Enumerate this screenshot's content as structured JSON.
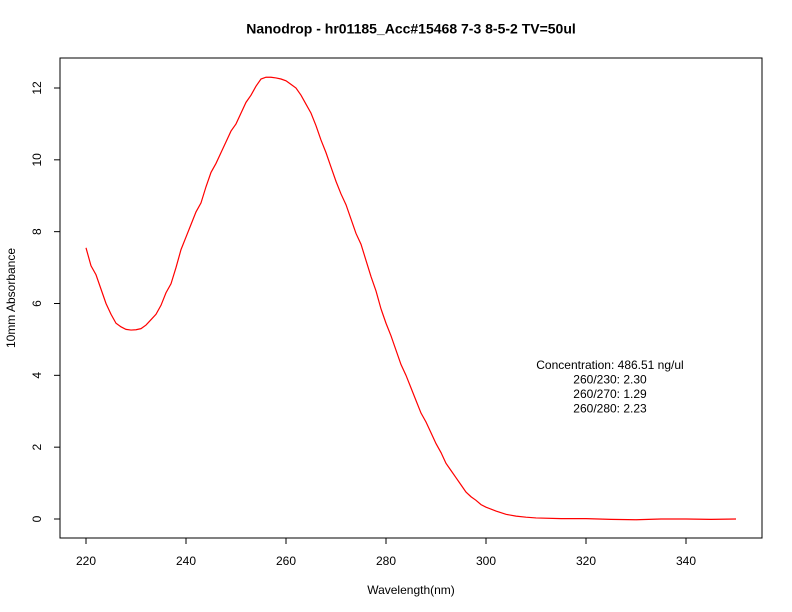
{
  "chart_data": {
    "type": "line",
    "title": "Nanodrop - hr01185_Acc#15468   7-3 8-5-2  TV=50ul",
    "x_label": "Wavelength(nm)",
    "y_label": "10mm Absorbance",
    "annotations": [
      "Concentration: 486.51 ng/ul",
      "260/230: 2.30",
      "260/270: 1.29",
      "260/280: 2.23"
    ],
    "x": [
      220,
      221,
      222,
      223,
      224,
      225,
      226,
      227,
      228,
      229,
      230,
      231,
      232,
      233,
      234,
      235,
      236,
      237,
      238,
      239,
      240,
      241,
      242,
      243,
      244,
      245,
      246,
      247,
      248,
      249,
      250,
      251,
      252,
      253,
      254,
      255,
      256,
      257,
      258,
      259,
      260,
      261,
      262,
      263,
      264,
      265,
      266,
      267,
      268,
      269,
      270,
      271,
      272,
      273,
      274,
      275,
      276,
      277,
      278,
      279,
      280,
      281,
      282,
      283,
      284,
      285,
      286,
      287,
      288,
      289,
      290,
      291,
      292,
      293,
      294,
      295,
      296,
      297,
      298,
      299,
      300,
      302,
      304,
      306,
      308,
      310,
      315,
      320,
      325,
      330,
      335,
      340,
      345,
      350
    ],
    "series": [
      {
        "color": "#ff0000",
        "values": [
          7.55,
          7.05,
          6.8,
          6.4,
          6.0,
          5.7,
          5.45,
          5.35,
          5.28,
          5.26,
          5.27,
          5.3,
          5.4,
          5.55,
          5.7,
          5.95,
          6.3,
          6.55,
          7.0,
          7.5,
          7.85,
          8.2,
          8.55,
          8.8,
          9.25,
          9.65,
          9.9,
          10.2,
          10.5,
          10.8,
          11.0,
          11.3,
          11.6,
          11.8,
          12.05,
          12.25,
          12.3,
          12.3,
          12.28,
          12.25,
          12.2,
          12.1,
          12.0,
          11.8,
          11.55,
          11.3,
          10.95,
          10.55,
          10.2,
          9.8,
          9.4,
          9.05,
          8.75,
          8.35,
          7.95,
          7.65,
          7.2,
          6.75,
          6.35,
          5.85,
          5.45,
          5.1,
          4.7,
          4.3,
          4.0,
          3.65,
          3.3,
          2.95,
          2.7,
          2.4,
          2.1,
          1.85,
          1.55,
          1.35,
          1.15,
          0.95,
          0.75,
          0.62,
          0.52,
          0.4,
          0.33,
          0.22,
          0.13,
          0.08,
          0.05,
          0.03,
          0.01,
          0.01,
          -0.01,
          -0.02,
          0.0,
          0.0,
          -0.01,
          0.0
        ]
      }
    ],
    "xlim": [
      214.8,
      355.2
    ],
    "ylim": [
      -0.529,
      12.835
    ],
    "xticks": [
      220,
      240,
      260,
      280,
      300,
      320,
      340
    ],
    "yticks": [
      0,
      2,
      4,
      6,
      8,
      10,
      12
    ]
  }
}
